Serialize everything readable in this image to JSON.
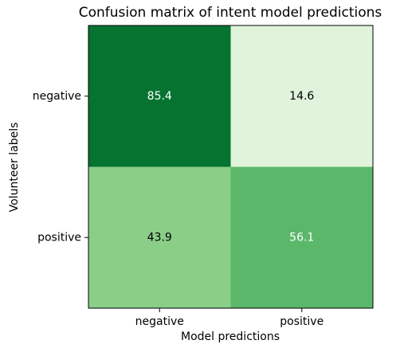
{
  "chart_data": {
    "type": "heatmap",
    "title": "Confusion matrix of intent model predictions",
    "xlabel": "Model predictions",
    "ylabel": "Volunteer labels",
    "x_categories": [
      "negative",
      "positive"
    ],
    "y_categories": [
      "negative",
      "positive"
    ],
    "values": [
      [
        85.4,
        14.6
      ],
      [
        43.9,
        56.1
      ]
    ],
    "colors": [
      [
        "#077331",
        "#e0f3db"
      ],
      [
        "#8ace88",
        "#5bb86a"
      ]
    ]
  }
}
